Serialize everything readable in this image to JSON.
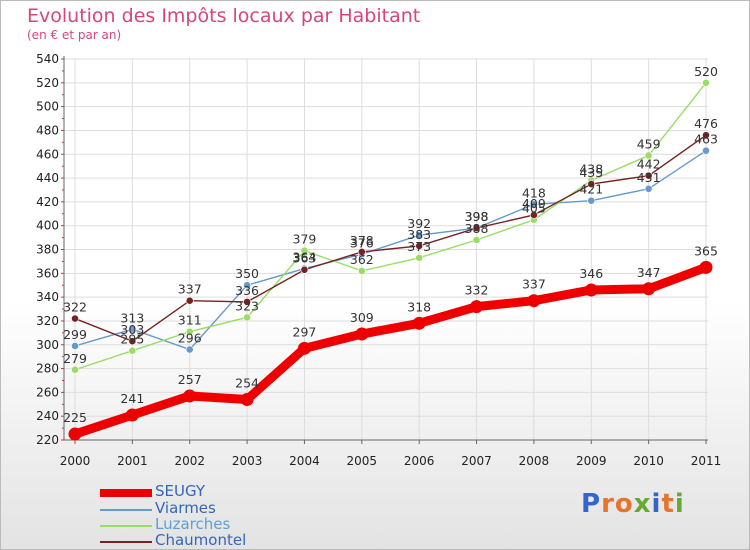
{
  "chart_data": {
    "type": "line",
    "title": "Evolution des Impôts locaux par Habitant",
    "subtitle": "(en € et par an)",
    "xlabel": "",
    "ylabel": "",
    "ylim": [
      220,
      540
    ],
    "ytick_step": 20,
    "categories": [
      "2000",
      "2001",
      "2002",
      "2003",
      "2004",
      "2005",
      "2006",
      "2007",
      "2008",
      "2009",
      "2010",
      "2011"
    ],
    "series": [
      {
        "name": "SEUGY",
        "color": "#ee0000",
        "values": [
          225,
          241,
          257,
          254,
          297,
          309,
          318,
          332,
          337,
          346,
          347,
          365
        ]
      },
      {
        "name": "Viarmes",
        "color": "#6699cc",
        "values": [
          299,
          313,
          296,
          350,
          364,
          376,
          392,
          398,
          418,
          421,
          431,
          463
        ]
      },
      {
        "name": "Luzarches",
        "color": "#99dd66",
        "values": [
          279,
          295,
          311,
          323,
          379,
          362,
          373,
          388,
          405,
          438,
          459,
          520
        ]
      },
      {
        "name": "Chaumontel",
        "color": "#772222",
        "values": [
          322,
          303,
          337,
          336,
          363,
          378,
          383,
          398,
          409,
          435,
          442,
          476
        ]
      }
    ]
  },
  "logo": {
    "letters": [
      "P",
      "r",
      "o",
      "x",
      "i",
      "t",
      "i"
    ],
    "colors": [
      "#3366cc",
      "#e8732a",
      "#e8732a",
      "#66aa33",
      "#3366cc",
      "#e8732a",
      "#66aa33"
    ]
  }
}
